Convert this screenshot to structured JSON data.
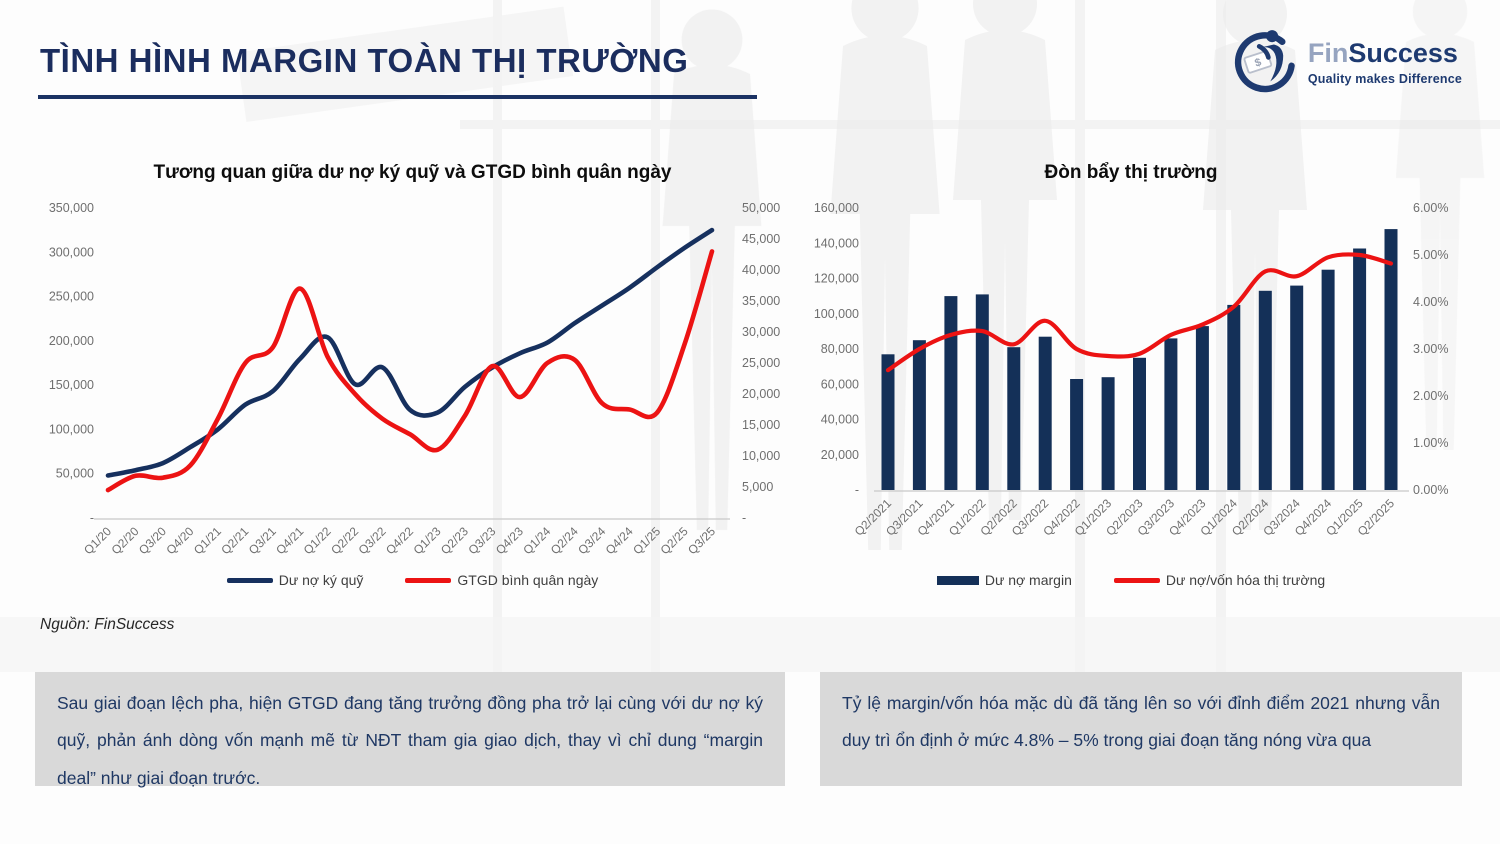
{
  "header": {
    "title": "TÌNH HÌNH MARGIN TOÀN THỊ TRƯỜNG"
  },
  "logo": {
    "brand_fin": "Fin",
    "brand_success": "Success",
    "tagline": "Quality makes Difference"
  },
  "source_note": "Nguồn: FinSuccess",
  "notes": {
    "left": "Sau giai đoạn lệch pha, hiện GTGD đang tăng trưởng đồng pha trở lại cùng với dư nợ ký quỹ, phản ánh dòng vốn mạnh mẽ từ NĐT tham gia giao dịch, thay vì chỉ dung “margin deal” như giai đoạn trước.",
    "right": "Tỷ lệ margin/vốn hóa mặc dù đã tăng lên so với đỉnh điểm 2021 nhưng vẫn duy trì ổn định ở mức 4.8% – 5% trong giai đoạn tăng nóng vừa qua"
  },
  "colors": {
    "navy": "#16305e",
    "bar_navy": "#143058",
    "red": "#ec1313",
    "axis_text": "#6f6f6f",
    "axis_line": "#c9c9c9",
    "title_navy": "#1b2d5e",
    "note_bg": "#d9d9d9",
    "note_text": "#1f3864"
  },
  "chart_data": [
    {
      "type": "line",
      "title": "Tương quan giữa dư nợ ký quỹ và GTGD bình quân ngày",
      "categories": [
        "Q1/20",
        "Q2/20",
        "Q3/20",
        "Q4/20",
        "Q1/21",
        "Q2/21",
        "Q3/21",
        "Q4/21",
        "Q1/22",
        "Q2/22",
        "Q3/22",
        "Q4/22",
        "Q1/23",
        "Q2/23",
        "Q3/23",
        "Q4/23",
        "Q1/24",
        "Q2/24",
        "Q3/24",
        "Q4/24",
        "Q1/25",
        "Q2/25",
        "Q3/25"
      ],
      "left_axis": {
        "min": 0,
        "max": 350000,
        "step": 50000,
        "format": "number"
      },
      "right_axis": {
        "min": 0,
        "max": 50000,
        "step": 5000,
        "format": "number"
      },
      "legend_position": "bottom",
      "grid": false,
      "series": [
        {
          "name": "Dư nợ ký quỹ",
          "type": "line",
          "axis": "left",
          "color": "#16305e",
          "values": [
            48000,
            54000,
            62000,
            80000,
            100000,
            128000,
            143000,
            180000,
            204000,
            151000,
            170000,
            122000,
            119000,
            148000,
            170000,
            186000,
            198000,
            220000,
            240000,
            260000,
            283000,
            305000,
            325000
          ]
        },
        {
          "name": "GTGD bình quân ngày",
          "type": "line",
          "axis": "right",
          "color": "#ec1313",
          "values": [
            4500,
            6800,
            6500,
            8500,
            16000,
            25000,
            27500,
            37000,
            26000,
            20000,
            16000,
            13500,
            11000,
            16500,
            24500,
            19500,
            25000,
            25500,
            18500,
            17500,
            17000,
            28000,
            43000
          ]
        }
      ]
    },
    {
      "type": "bar",
      "title": "Đòn bẩy thị trường",
      "categories": [
        "Q2/2021",
        "Q3/2021",
        "Q4/2021",
        "Q1/2022",
        "Q2/2022",
        "Q3/2022",
        "Q4/2022",
        "Q1/2023",
        "Q2/2023",
        "Q3/2023",
        "Q4/2023",
        "Q1/2024",
        "Q2/2024",
        "Q3/2024",
        "Q4/2024",
        "Q1/2025",
        "Q2/2025"
      ],
      "left_axis": {
        "min": 0,
        "max": 160000,
        "step": 20000,
        "format": "number"
      },
      "right_axis": {
        "min": 0,
        "max": 6,
        "step": 1,
        "format": "percent"
      },
      "legend_position": "bottom",
      "grid": false,
      "series": [
        {
          "name": "Dư nợ margin",
          "type": "bar",
          "axis": "left",
          "color": "#143058",
          "values": [
            77000,
            85000,
            110000,
            111000,
            81000,
            87000,
            63000,
            64000,
            75000,
            86000,
            93000,
            105000,
            113000,
            116000,
            125000,
            137000,
            148000
          ]
        },
        {
          "name": "Dư nợ/vốn hóa thị trường",
          "type": "line",
          "axis": "right",
          "color": "#ec1313",
          "values": [
            2.55,
            3.0,
            3.3,
            3.38,
            3.1,
            3.6,
            3.0,
            2.85,
            2.9,
            3.3,
            3.52,
            3.9,
            4.65,
            4.55,
            4.95,
            5.0,
            4.82
          ]
        }
      ]
    }
  ]
}
